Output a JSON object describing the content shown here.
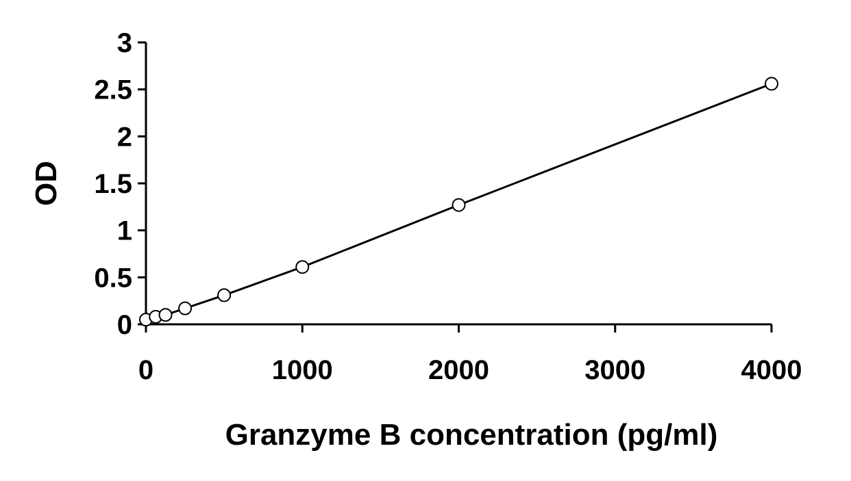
{
  "chart_data": {
    "type": "scatter",
    "title": "",
    "xlabel": "Granzyme B concentration (pg/ml)",
    "ylabel": "OD",
    "xlim": [
      0,
      4000
    ],
    "ylim": [
      0,
      3
    ],
    "x_ticks": [
      "0",
      "1000",
      "2000",
      "3000",
      "4000"
    ],
    "y_ticks": [
      "0",
      "0.5",
      "1",
      "1.5",
      "2",
      "2.5",
      "3"
    ],
    "grid": false,
    "legend": "none",
    "series": [
      {
        "x": [
          0,
          62.5,
          125,
          250,
          500,
          1000,
          2000,
          4000
        ],
        "y": [
          0.05,
          0.08,
          0.1,
          0.17,
          0.31,
          0.61,
          1.27,
          2.56
        ],
        "marker": "open-circle",
        "fit_line": true
      }
    ],
    "colors": {
      "line": "#000000",
      "marker_stroke": "#000000",
      "marker_fill": "#ffffff",
      "background": "#ffffff"
    }
  }
}
